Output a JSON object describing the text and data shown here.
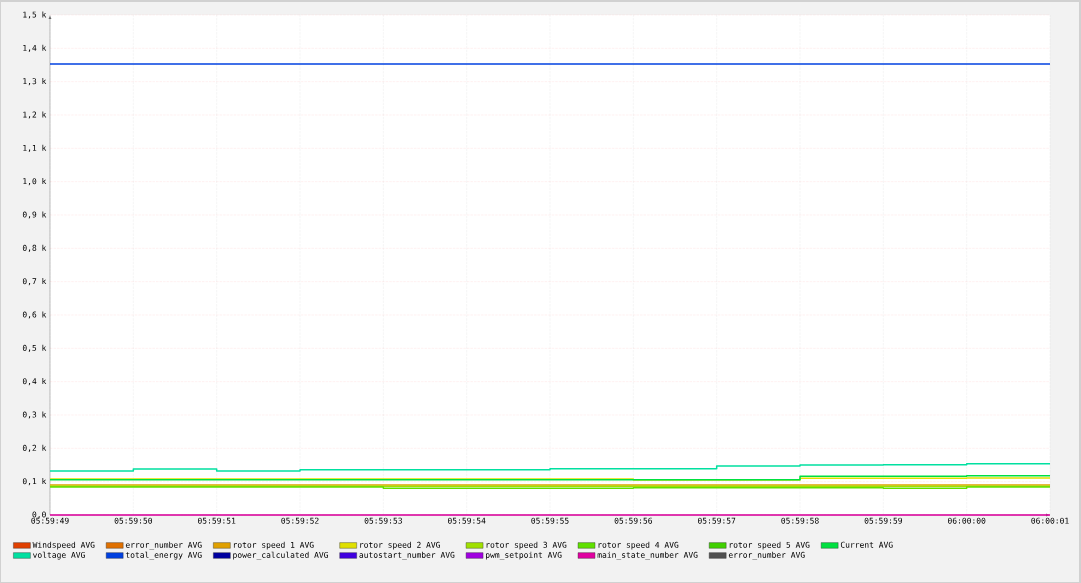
{
  "chart_data": {
    "type": "step",
    "categories": [
      "05:59:49",
      "05:59:50",
      "05:59:51",
      "05:59:52",
      "05:59:53",
      "05:59:54",
      "05:59:55",
      "05:59:56",
      "05:59:57",
      "05:59:58",
      "05:59:59",
      "06:00:00",
      "06:00:01"
    ],
    "ylim": [
      0,
      1500
    ],
    "yticks": [
      {
        "value": 0,
        "label": "0,0"
      },
      {
        "value": 100,
        "label": "0,1 k"
      },
      {
        "value": 200,
        "label": "0,2 k"
      },
      {
        "value": 300,
        "label": "0,3 k"
      },
      {
        "value": 400,
        "label": "0,4 k"
      },
      {
        "value": 500,
        "label": "0,5 k"
      },
      {
        "value": 600,
        "label": "0,6 k"
      },
      {
        "value": 700,
        "label": "0,7 k"
      },
      {
        "value": 800,
        "label": "0,8 k"
      },
      {
        "value": 900,
        "label": "0,9 k"
      },
      {
        "value": 1000,
        "label": "1,0 k"
      },
      {
        "value": 1100,
        "label": "1,1 k"
      },
      {
        "value": 1200,
        "label": "1,2 k"
      },
      {
        "value": 1300,
        "label": "1,3 k"
      },
      {
        "value": 1400,
        "label": "1,4 k"
      },
      {
        "value": 1500,
        "label": "1,5 k"
      }
    ],
    "grid": true,
    "legend": "bottom",
    "series": [
      {
        "name": "Windspeed AVG",
        "color": "#e04000",
        "values": [
          null,
          null,
          null,
          null,
          null,
          null,
          null,
          null,
          null,
          null,
          null,
          null,
          null
        ]
      },
      {
        "name": "error_number AVG",
        "color": "#e07000",
        "values": [
          null,
          null,
          null,
          null,
          null,
          null,
          null,
          null,
          null,
          null,
          null,
          null,
          null
        ]
      },
      {
        "name": "rotor speed 1 AVG",
        "color": "#e0a000",
        "values": [
          90,
          90,
          90,
          90,
          90,
          90,
          90,
          90,
          90,
          90,
          90,
          90,
          90
        ]
      },
      {
        "name": "rotor speed 2 AVG",
        "color": "#e0e000",
        "values": [
          108,
          108,
          108,
          108,
          108,
          108,
          108,
          105,
          105,
          110,
          110,
          111,
          111
        ]
      },
      {
        "name": "rotor speed 3 AVG",
        "color": "#a0e000",
        "values": [
          86,
          86,
          86,
          86,
          86,
          86,
          86,
          86,
          86,
          86,
          86,
          86,
          86
        ]
      },
      {
        "name": "rotor speed 4 AVG",
        "color": "#60e000",
        "values": [
          84,
          84,
          84,
          84,
          80,
          80,
          80,
          82,
          82,
          82,
          80,
          84,
          84
        ]
      },
      {
        "name": "rotor speed 5 AVG",
        "color": "#40d000",
        "values": [
          null,
          null,
          null,
          null,
          null,
          null,
          null,
          null,
          null,
          null,
          null,
          null,
          null
        ]
      },
      {
        "name": "Current AVG",
        "color": "#00e040",
        "values": [
          106,
          106,
          106,
          106,
          106,
          106,
          106,
          106,
          106,
          116,
          116,
          118,
          118
        ]
      },
      {
        "name": "voltage AVG",
        "color": "#00e0a0",
        "values": [
          132,
          138,
          132,
          136,
          136,
          136,
          139,
          139,
          147,
          150,
          151,
          154,
          154
        ]
      },
      {
        "name": "total_energy AVG",
        "color": "#0040e0",
        "values": [
          1353,
          1353,
          1353,
          1353,
          1353,
          1353,
          1353,
          1353,
          1353,
          1353,
          1353,
          1353,
          1353
        ]
      },
      {
        "name": "power_calculated AVG",
        "color": "#0000a0",
        "values": [
          null,
          null,
          null,
          null,
          null,
          null,
          null,
          null,
          null,
          null,
          null,
          null,
          null
        ]
      },
      {
        "name": "autostart_number AVG",
        "color": "#4000e0",
        "values": [
          null,
          null,
          null,
          null,
          null,
          null,
          null,
          null,
          null,
          null,
          null,
          null,
          null
        ]
      },
      {
        "name": "pwm_setpoint AVG",
        "color": "#a000e0",
        "values": [
          null,
          null,
          null,
          null,
          null,
          null,
          null,
          null,
          null,
          null,
          null,
          null,
          null
        ]
      },
      {
        "name": "main_state_number AVG",
        "color": "#e000a0",
        "values": [
          0,
          0,
          0,
          0,
          0,
          0,
          0,
          0,
          0,
          0,
          0,
          0,
          0
        ]
      },
      {
        "name": "error_number AVG",
        "color": "#505050",
        "values": [
          null,
          null,
          null,
          null,
          null,
          null,
          null,
          null,
          null,
          null,
          null,
          null,
          null
        ]
      }
    ]
  }
}
